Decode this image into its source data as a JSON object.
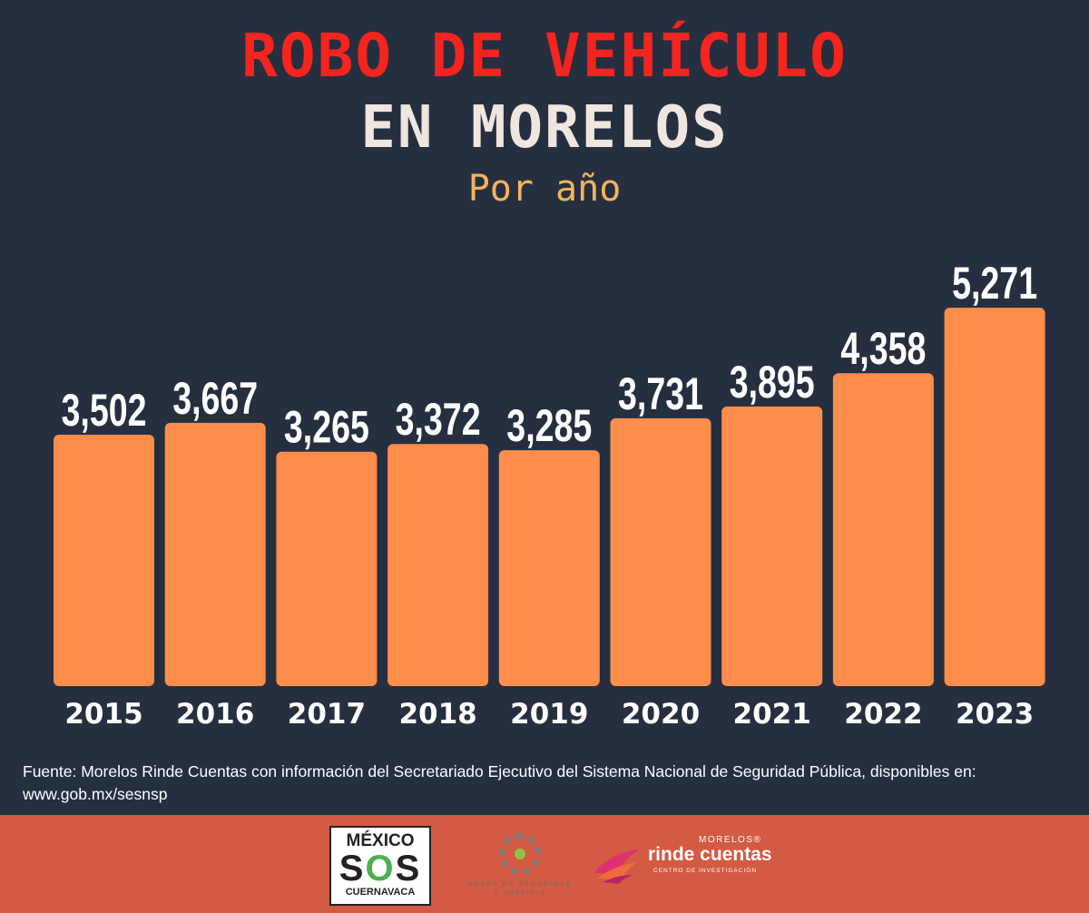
{
  "header": {
    "title_line1": "ROBO DE VEHÍCULO",
    "title_line2": "EN MORELOS",
    "subtitle": "Por año"
  },
  "chart_data": {
    "type": "bar",
    "categories": [
      "2015",
      "2016",
      "2017",
      "2018",
      "2019",
      "2020",
      "2021",
      "2022",
      "2023"
    ],
    "values": [
      3502,
      3667,
      3265,
      3372,
      3285,
      3731,
      3895,
      4358,
      5271
    ],
    "value_labels": [
      "3,502",
      "3,667",
      "3,265",
      "3,372",
      "3,285",
      "3,731",
      "3,895",
      "4,358",
      "5,271"
    ],
    "title": "ROBO DE VEHÍCULO EN MORELOS",
    "subtitle": "Por año",
    "xlabel": "",
    "ylabel": "",
    "ylim": [
      0,
      5271
    ],
    "grid": false,
    "bar_color": "#ff8d4b"
  },
  "source": {
    "line1": "Fuente: Morelos Rinde Cuentas con información del Secretariado Ejecutivo del Sistema Nacional de Seguridad Pública, disponibles en:",
    "line2": "www.gob.mx/sesnsp"
  },
  "footer": {
    "background": "#d35a43",
    "logo_mexico": {
      "line1": "MÉXICO",
      "line2_s1": "S",
      "line2_o": "O",
      "line2_s2": "S",
      "line3": "CUERNAVACA"
    },
    "logo_mesas": {
      "line1": "MESAS DE SEGURIDAD",
      "line2": "Y JUSTICIA"
    },
    "logo_rinde": {
      "morelos": "MORELOS®",
      "name": "rinde cuentas",
      "centro": "CENTRO DE INVESTIGACIÓN"
    }
  },
  "colors": {
    "background": "#252f3f",
    "title_red": "#f5241f",
    "title_light": "#efe6df",
    "subtitle_orange": "#f6b35c"
  }
}
